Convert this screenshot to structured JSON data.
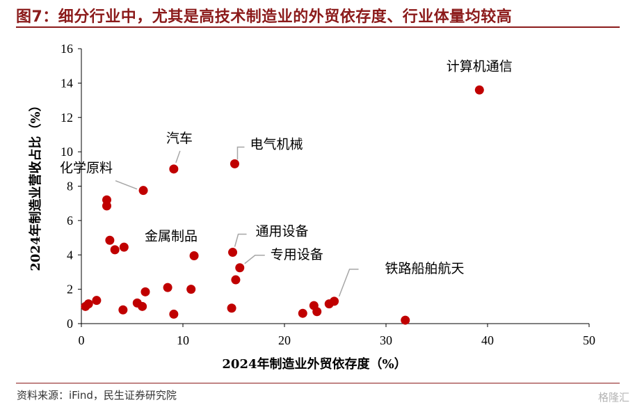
{
  "figure": {
    "title": "图7：细分行业中，尤其是高技术制造业的外贸依存度、行业体量均较高",
    "source": "资料来源：iFind，民生证券研究院",
    "watermark": "格隆汇"
  },
  "chart_data": {
    "type": "scatter",
    "xlabel": "2024年制造业外贸依存度（%）",
    "ylabel": "2024年制造业营收占比（%）",
    "xlim": [
      0,
      50
    ],
    "ylim": [
      0,
      16
    ],
    "xticks": [
      0,
      10,
      20,
      30,
      40,
      50
    ],
    "yticks": [
      0,
      2,
      4,
      6,
      8,
      10,
      12,
      14,
      16
    ],
    "grid": false,
    "legend": "none",
    "marker_color": "#c00000",
    "points": [
      {
        "x": 0.4,
        "y": 1.0
      },
      {
        "x": 0.7,
        "y": 1.15
      },
      {
        "x": 1.5,
        "y": 1.35
      },
      {
        "x": 2.5,
        "y": 7.2
      },
      {
        "x": 2.5,
        "y": 6.85
      },
      {
        "x": 2.8,
        "y": 4.85
      },
      {
        "x": 3.3,
        "y": 4.3
      },
      {
        "x": 4.2,
        "y": 4.45
      },
      {
        "x": 4.1,
        "y": 0.8
      },
      {
        "x": 5.5,
        "y": 1.2
      },
      {
        "x": 6.0,
        "y": 1.0
      },
      {
        "x": 6.1,
        "y": 7.75
      },
      {
        "x": 6.3,
        "y": 1.85
      },
      {
        "x": 8.5,
        "y": 2.1
      },
      {
        "x": 9.1,
        "y": 9.0
      },
      {
        "x": 9.1,
        "y": 0.55
      },
      {
        "x": 10.8,
        "y": 2.0
      },
      {
        "x": 11.1,
        "y": 3.95
      },
      {
        "x": 14.8,
        "y": 0.9
      },
      {
        "x": 14.9,
        "y": 4.15
      },
      {
        "x": 15.1,
        "y": 9.3
      },
      {
        "x": 15.2,
        "y": 2.55
      },
      {
        "x": 15.6,
        "y": 3.25
      },
      {
        "x": 21.8,
        "y": 0.6
      },
      {
        "x": 22.9,
        "y": 1.05
      },
      {
        "x": 23.2,
        "y": 0.7
      },
      {
        "x": 24.4,
        "y": 1.15
      },
      {
        "x": 24.9,
        "y": 1.3
      },
      {
        "x": 31.9,
        "y": 0.2
      },
      {
        "x": 39.2,
        "y": 13.6
      }
    ],
    "annotations": [
      {
        "text": "计算机通信",
        "x": 39.2,
        "y": 13.6
      },
      {
        "text": "电气机械",
        "x": 15.1,
        "y": 9.3
      },
      {
        "text": "汽车",
        "x": 9.1,
        "y": 9.0
      },
      {
        "text": "化学原料",
        "x": 6.1,
        "y": 7.75
      },
      {
        "text": "金属制品",
        "x": 11.1,
        "y": 3.95
      },
      {
        "text": "通用设备",
        "x": 14.9,
        "y": 4.15
      },
      {
        "text": "专用设备",
        "x": 15.6,
        "y": 3.25
      },
      {
        "text": "铁路船舶航天",
        "x": 24.9,
        "y": 1.3
      }
    ]
  }
}
